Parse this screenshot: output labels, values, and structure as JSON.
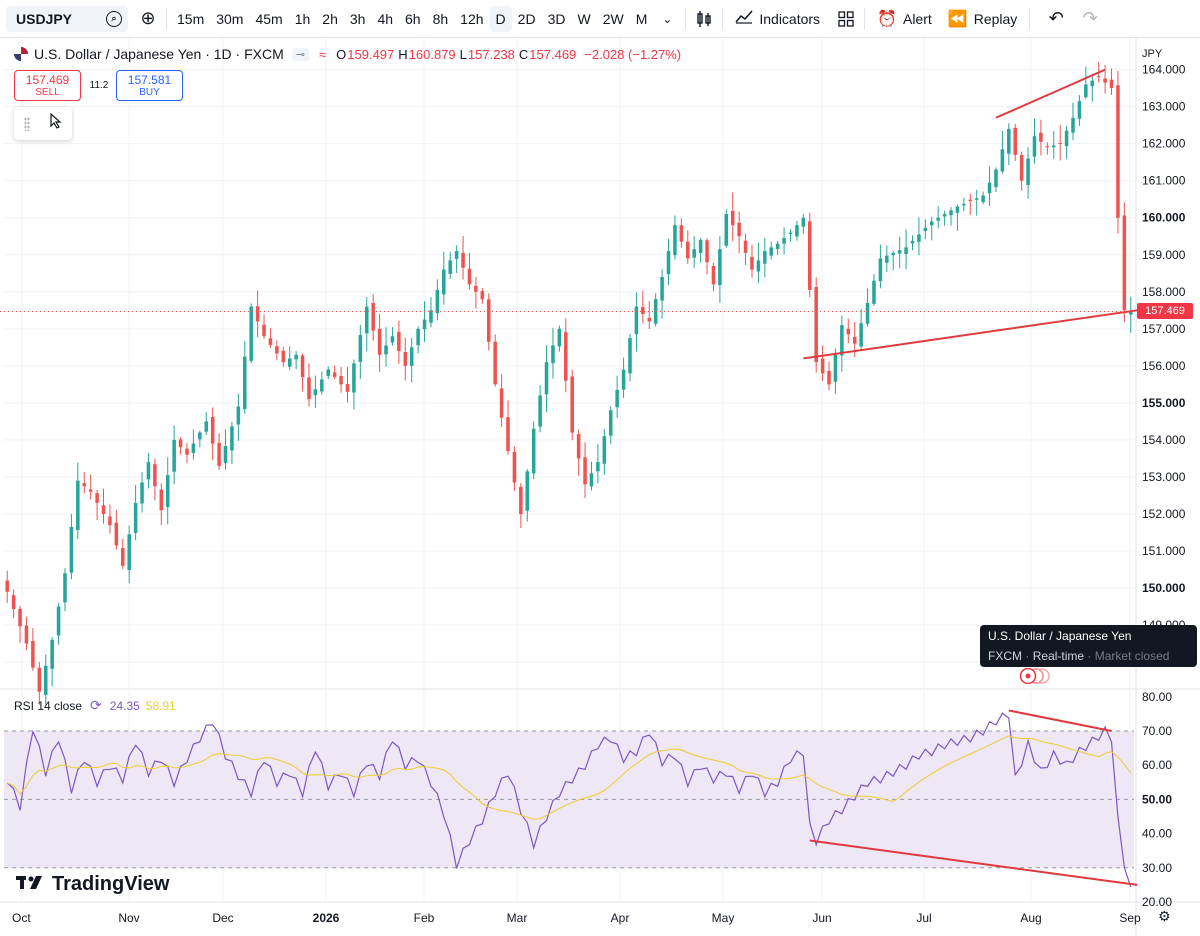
{
  "toolbar": {
    "symbol": "USDJPY",
    "intervals": [
      "15m",
      "30m",
      "45m",
      "1h",
      "2h",
      "3h",
      "4h",
      "6h",
      "8h",
      "12h",
      "D",
      "2D",
      "3D",
      "W",
      "2W",
      "M"
    ],
    "active_interval": "D",
    "indicators_label": "Indicators",
    "alert_label": "Alert",
    "replay_label": "Replay"
  },
  "legend": {
    "title": "U.S. Dollar / Japanese Yen · 1D · FXCM",
    "open_label": "O",
    "open": "159.497",
    "high_label": "H",
    "high": "160.879",
    "low_label": "L",
    "low": "157.238",
    "close_label": "C",
    "close": "157.469",
    "change": "−2.028 (−1.27%)"
  },
  "trade": {
    "sell_price": "157.469",
    "sell_label": "SELL",
    "spread": "11.2",
    "buy_price": "157.581",
    "buy_label": "BUY"
  },
  "price_scale": {
    "unit": "JPY",
    "ticks": [
      "164.000",
      "163.000",
      "162.000",
      "161.000",
      "160.000",
      "159.000",
      "158.000",
      "157.000",
      "156.000",
      "155.000",
      "154.000",
      "153.000",
      "152.000",
      "151.000",
      "150.000",
      "149.000",
      "148.000"
    ],
    "last_price": "157.469"
  },
  "tooltip": {
    "line1": "U.S. Dollar / Japanese Yen",
    "source": "FXCM",
    "mode": "Real-time",
    "status": "Market closed"
  },
  "rsi": {
    "title": "RSI 14 close",
    "value": "24.35",
    "ma_value": "58.91",
    "ticks": [
      "80.00",
      "70.00",
      "60.00",
      "50.00",
      "40.00",
      "30.00",
      "20.00"
    ]
  },
  "time_axis": [
    "Oct",
    "Nov",
    "Dec",
    "2026",
    "Feb",
    "Mar",
    "Apr",
    "May",
    "Jun",
    "Jul",
    "Aug",
    "Sep"
  ],
  "brand": "TradingView",
  "colors": {
    "up": "#26a69a",
    "down": "#ef5350",
    "rsi": "#7e57c2",
    "rsi_ma": "#ebcf2e",
    "trendline": "#e0393e",
    "rsi_band": "#ede7f6"
  },
  "chart_data": {
    "type": "candlestick",
    "price_ylim": [
      147.3,
      164.8
    ],
    "rsi_ylim": [
      20,
      82
    ],
    "rsi_bands": [
      30,
      50,
      70
    ],
    "x_months": [
      "Oct",
      "Nov",
      "Dec",
      "2026",
      "Feb",
      "Mar",
      "Apr",
      "May",
      "Jun",
      "Jul",
      "Aug",
      "Sep"
    ],
    "price_anchors": [
      [
        0,
        149.9
      ],
      [
        3,
        148.5
      ],
      [
        5,
        147.2
      ],
      [
        7,
        148.6
      ],
      [
        9,
        150.4
      ],
      [
        11,
        152.9
      ],
      [
        13,
        152.6
      ],
      [
        16,
        151.7
      ],
      [
        18,
        150.6
      ],
      [
        20,
        152.3
      ],
      [
        22,
        153.4
      ],
      [
        24,
        152.1
      ],
      [
        26,
        154.0
      ],
      [
        28,
        153.6
      ],
      [
        31,
        154.5
      ],
      [
        33,
        153.3
      ],
      [
        36,
        154.9
      ],
      [
        38,
        157.6
      ],
      [
        40,
        156.8
      ],
      [
        43,
        156.1
      ],
      [
        45,
        156.3
      ],
      [
        47,
        155.1
      ],
      [
        50,
        155.9
      ],
      [
        53,
        155.3
      ],
      [
        56,
        157.6
      ],
      [
        58,
        156.3
      ],
      [
        60,
        156.8
      ],
      [
        62,
        156.0
      ],
      [
        64,
        157.0
      ],
      [
        66,
        157.5
      ],
      [
        68,
        158.6
      ],
      [
        70,
        159.1
      ],
      [
        72,
        158.2
      ],
      [
        74,
        157.8
      ],
      [
        76,
        155.5
      ],
      [
        78,
        153.7
      ],
      [
        80,
        152.0
      ],
      [
        82,
        154.3
      ],
      [
        84,
        156.1
      ],
      [
        86,
        157.0
      ],
      [
        88,
        154.2
      ],
      [
        90,
        152.8
      ],
      [
        92,
        153.4
      ],
      [
        94,
        154.8
      ],
      [
        96,
        155.9
      ],
      [
        98,
        157.6
      ],
      [
        100,
        157.2
      ],
      [
        102,
        158.4
      ],
      [
        104,
        159.8
      ],
      [
        106,
        158.9
      ],
      [
        108,
        159.4
      ],
      [
        110,
        158.2
      ],
      [
        112,
        160.1
      ],
      [
        114,
        159.5
      ],
      [
        116,
        158.6
      ],
      [
        118,
        159.1
      ],
      [
        120,
        159.3
      ],
      [
        122,
        159.6
      ],
      [
        124,
        160.0
      ],
      [
        126,
        156.1
      ],
      [
        128,
        155.5
      ],
      [
        130,
        157.1
      ],
      [
        132,
        156.6
      ],
      [
        134,
        157.7
      ],
      [
        136,
        158.9
      ],
      [
        140,
        159.2
      ],
      [
        144,
        159.9
      ],
      [
        148,
        160.3
      ],
      [
        152,
        160.6
      ],
      [
        154,
        161.3
      ],
      [
        156,
        162.4
      ],
      [
        158,
        161.0
      ],
      [
        160,
        162.2
      ],
      [
        162,
        161.9
      ],
      [
        164,
        162.0
      ],
      [
        166,
        162.7
      ],
      [
        168,
        163.6
      ],
      [
        170,
        163.8
      ],
      [
        172,
        163.5
      ],
      [
        173,
        160.0
      ],
      [
        174,
        157.5
      ],
      [
        175,
        157.469
      ]
    ],
    "rsi_anchors": [
      [
        0,
        56
      ],
      [
        2,
        48
      ],
      [
        4,
        71
      ],
      [
        6,
        58
      ],
      [
        8,
        68
      ],
      [
        10,
        53
      ],
      [
        12,
        62
      ],
      [
        14,
        55
      ],
      [
        16,
        60
      ],
      [
        18,
        56
      ],
      [
        20,
        67
      ],
      [
        22,
        58
      ],
      [
        24,
        62
      ],
      [
        26,
        55
      ],
      [
        28,
        62
      ],
      [
        30,
        68
      ],
      [
        32,
        73
      ],
      [
        34,
        63
      ],
      [
        36,
        57
      ],
      [
        38,
        52
      ],
      [
        40,
        62
      ],
      [
        42,
        55
      ],
      [
        44,
        58
      ],
      [
        46,
        52
      ],
      [
        48,
        65
      ],
      [
        50,
        54
      ],
      [
        52,
        58
      ],
      [
        54,
        52
      ],
      [
        56,
        61
      ],
      [
        58,
        57
      ],
      [
        60,
        68
      ],
      [
        62,
        60
      ],
      [
        64,
        62
      ],
      [
        66,
        55
      ],
      [
        68,
        46
      ],
      [
        70,
        31
      ],
      [
        72,
        38
      ],
      [
        74,
        44
      ],
      [
        76,
        52
      ],
      [
        78,
        58
      ],
      [
        80,
        47
      ],
      [
        82,
        37
      ],
      [
        84,
        45
      ],
      [
        86,
        52
      ],
      [
        88,
        56
      ],
      [
        90,
        60
      ],
      [
        92,
        66
      ],
      [
        94,
        68
      ],
      [
        96,
        62
      ],
      [
        98,
        64
      ],
      [
        100,
        70
      ],
      [
        102,
        61
      ],
      [
        104,
        63
      ],
      [
        106,
        55
      ],
      [
        108,
        60
      ],
      [
        110,
        56
      ],
      [
        112,
        58
      ],
      [
        114,
        53
      ],
      [
        116,
        58
      ],
      [
        118,
        52
      ],
      [
        120,
        55
      ],
      [
        122,
        62
      ],
      [
        124,
        64
      ],
      [
        125,
        42
      ],
      [
        126,
        38
      ],
      [
        128,
        44
      ],
      [
        130,
        47
      ],
      [
        132,
        51
      ],
      [
        134,
        55
      ],
      [
        136,
        56
      ],
      [
        138,
        58
      ],
      [
        140,
        60
      ],
      [
        142,
        63
      ],
      [
        144,
        64
      ],
      [
        146,
        66
      ],
      [
        148,
        67
      ],
      [
        150,
        68
      ],
      [
        152,
        70
      ],
      [
        154,
        73
      ],
      [
        156,
        75
      ],
      [
        157,
        56
      ],
      [
        159,
        66
      ],
      [
        161,
        58
      ],
      [
        163,
        63
      ],
      [
        165,
        60
      ],
      [
        167,
        64
      ],
      [
        169,
        67
      ],
      [
        171,
        70
      ],
      [
        172,
        68
      ],
      [
        173,
        45
      ],
      [
        174,
        30
      ],
      [
        175,
        24.35
      ]
    ],
    "trendlines_price": [
      {
        "from": [
          124,
          156.2
        ],
        "to": [
          176,
          157.5
        ]
      },
      {
        "from": [
          154,
          162.7
        ],
        "to": [
          171,
          164.0
        ]
      }
    ],
    "trendlines_rsi": [
      {
        "from": [
          125,
          38
        ],
        "to": [
          176,
          25
        ]
      },
      {
        "from": [
          156,
          76
        ],
        "to": [
          172,
          70
        ]
      }
    ]
  }
}
